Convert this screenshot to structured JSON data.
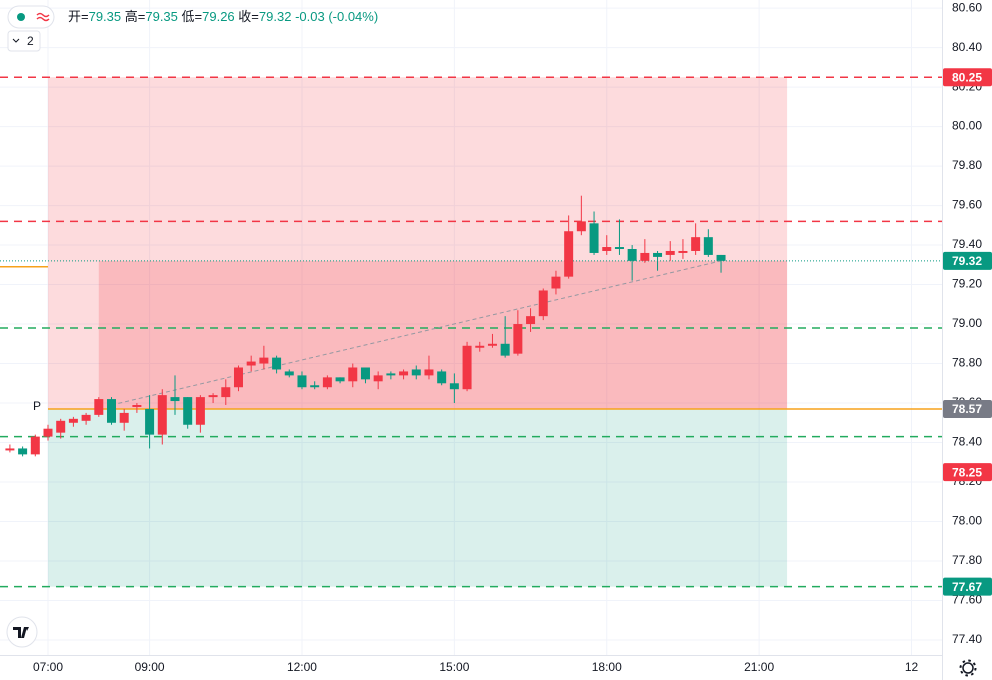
{
  "header": {
    "indicator_count": 2,
    "ohlc_legend": [
      {
        "label": "开=",
        "value": 79.35
      },
      {
        "label": "高=",
        "value": 79.35
      },
      {
        "label": "低=",
        "value": 79.26
      },
      {
        "label": "收=",
        "value": 79.32
      }
    ],
    "change": -0.03,
    "change_pct": "(-0.04%)"
  },
  "chart_data": {
    "type": "candlestick",
    "xlim": [
      6.055,
      24.6
    ],
    "ylim": [
      77.324,
      80.641
    ],
    "xticks": [
      {
        "value": 7,
        "label": "07:00"
      },
      {
        "value": 9,
        "label": "09:00"
      },
      {
        "value": 12,
        "label": "12:00"
      },
      {
        "value": 15,
        "label": "15:00"
      },
      {
        "value": 18,
        "label": "18:00"
      },
      {
        "value": 21,
        "label": "21:00"
      },
      {
        "value": 24,
        "label": "12"
      }
    ],
    "yticks": [
      {
        "value": 77.4,
        "label": "77.40"
      },
      {
        "value": 77.6,
        "label": "77.60"
      },
      {
        "value": 77.8,
        "label": "77.80"
      },
      {
        "value": 78,
        "label": "78.00"
      },
      {
        "value": 78.2,
        "label": "78.20"
      },
      {
        "value": 78.4,
        "label": "78.40"
      },
      {
        "value": 78.6,
        "label": "78.60"
      },
      {
        "value": 78.8,
        "label": "78.80"
      },
      {
        "value": 79,
        "label": "79.00"
      },
      {
        "value": 79.2,
        "label": "79.20"
      },
      {
        "value": 79.4,
        "label": "79.40"
      },
      {
        "value": 79.6,
        "label": "79.60"
      },
      {
        "value": 79.8,
        "label": "79.80"
      },
      {
        "value": 80,
        "label": "80.00"
      },
      {
        "value": 80.2,
        "label": "80.20"
      },
      {
        "value": 80.4,
        "label": "80.40"
      },
      {
        "value": 80.6,
        "label": "80.60"
      }
    ],
    "grid": true,
    "up_color": "#f23645",
    "down_color": "#089981",
    "candles": {
      "x": [
        6.25,
        6.5,
        6.75,
        7,
        7.25,
        7.5,
        7.75,
        8,
        8.25,
        8.5,
        8.75,
        9,
        9.25,
        9.5,
        9.75,
        10,
        10.25,
        10.5,
        10.75,
        11,
        11.25,
        11.5,
        11.75,
        12,
        12.25,
        12.5,
        12.75,
        13,
        13.25,
        13.5,
        13.75,
        14,
        14.25,
        14.5,
        14.75,
        15,
        15.25,
        15.5,
        15.75,
        16,
        16.25,
        16.5,
        16.75,
        17,
        17.25,
        17.5,
        17.75,
        18,
        18.25,
        18.5,
        18.75,
        19,
        19.25,
        19.5,
        19.75,
        20,
        20.25
      ],
      "open": [
        78.36,
        78.37,
        78.34,
        78.43,
        78.45,
        78.5,
        78.51,
        78.54,
        78.62,
        78.5,
        78.58,
        78.57,
        78.44,
        78.63,
        78.63,
        78.49,
        78.63,
        78.63,
        78.68,
        78.79,
        78.8,
        78.83,
        78.76,
        78.74,
        78.69,
        78.68,
        78.73,
        78.71,
        78.78,
        78.71,
        78.75,
        78.74,
        78.77,
        78.74,
        78.76,
        78.7,
        78.67,
        78.88,
        78.89,
        78.9,
        78.85,
        79,
        79.04,
        79.18,
        79.24,
        79.47,
        79.51,
        79.37,
        79.39,
        79.38,
        79.32,
        79.36,
        79.35,
        79.36,
        79.37,
        79.44,
        79.35
      ],
      "high": [
        78.39,
        78.38,
        78.44,
        78.49,
        78.52,
        78.53,
        78.55,
        78.63,
        78.63,
        78.57,
        78.6,
        78.64,
        78.67,
        78.74,
        78.63,
        78.64,
        78.65,
        78.72,
        78.79,
        78.84,
        78.89,
        78.84,
        78.77,
        78.76,
        78.71,
        78.74,
        78.73,
        78.8,
        78.78,
        78.76,
        78.76,
        78.77,
        78.79,
        78.84,
        78.77,
        78.75,
        78.91,
        78.91,
        78.95,
        79.04,
        79.07,
        79.08,
        79.18,
        79.27,
        79.55,
        79.65,
        79.57,
        79.45,
        79.53,
        79.4,
        79.43,
        79.37,
        79.42,
        79.43,
        79.51,
        79.48,
        79.35
      ],
      "low": [
        78.35,
        78.33,
        78.33,
        78.41,
        78.42,
        78.48,
        78.49,
        78.53,
        78.49,
        78.46,
        78.55,
        78.37,
        78.39,
        78.54,
        78.47,
        78.45,
        78.6,
        78.59,
        78.66,
        78.76,
        78.77,
        78.75,
        78.73,
        78.67,
        78.67,
        78.67,
        78.7,
        78.68,
        78.7,
        78.67,
        78.72,
        78.72,
        78.72,
        78.72,
        78.69,
        78.6,
        78.66,
        78.86,
        78.88,
        78.83,
        78.84,
        78.96,
        79.02,
        79.15,
        79.23,
        79.45,
        79.35,
        79.35,
        79.35,
        79.22,
        79.31,
        79.27,
        79.32,
        79.33,
        79.35,
        79.34,
        79.26
      ],
      "close": [
        78.37,
        78.34,
        78.43,
        78.47,
        78.51,
        78.52,
        78.54,
        78.62,
        78.5,
        78.55,
        78.59,
        78.44,
        78.64,
        78.61,
        78.49,
        78.63,
        78.64,
        78.68,
        78.78,
        78.81,
        78.83,
        78.77,
        78.74,
        78.68,
        78.68,
        78.73,
        78.71,
        78.78,
        78.72,
        78.74,
        78.74,
        78.76,
        78.74,
        78.77,
        78.7,
        78.67,
        78.89,
        78.89,
        78.9,
        78.84,
        79,
        79.04,
        79.17,
        79.24,
        79.47,
        79.52,
        79.36,
        79.39,
        79.38,
        79.32,
        79.36,
        79.34,
        79.37,
        79.37,
        79.44,
        79.35,
        79.32
      ]
    },
    "position": {
      "x": [
        7,
        21.55
      ],
      "inner_x": 8,
      "target": 80.25,
      "entry": 78.57,
      "stop": 77.67,
      "current": 79.32
    },
    "levels": [
      {
        "value": 80.25,
        "color": "#f23645",
        "dashed": true
      },
      {
        "value": 79.52,
        "color": "#f23645",
        "dashed": true
      },
      {
        "value": 78.98,
        "color": "#22ab5e",
        "dashed": true
      },
      {
        "value": 78.43,
        "color": "#22ab5e",
        "dashed": true
      },
      {
        "value": 77.67,
        "color": "#22ab5e",
        "dashed": true
      },
      {
        "value": 78.57,
        "color": "#f7a21b",
        "dashed": false,
        "from": 7
      },
      {
        "value": 79.29,
        "color": "#f7a21b",
        "dashed": false,
        "to": 7
      },
      {
        "value": 79.32,
        "color": "#089981",
        "dotted": true
      }
    ],
    "pivot_label": "P",
    "trend_line": {
      "x": [
        8.25,
        20.25
      ],
      "y": [
        78.59,
        79.32
      ]
    },
    "price_labels": [
      {
        "value": 80.25,
        "color": "#f23645"
      },
      {
        "value": 79.32,
        "color": "#089981"
      },
      {
        "value": 78.57,
        "color": "#787b86"
      },
      {
        "value": 78.25,
        "color": "#f23645"
      },
      {
        "value": 77.67,
        "color": "#089981"
      }
    ]
  }
}
